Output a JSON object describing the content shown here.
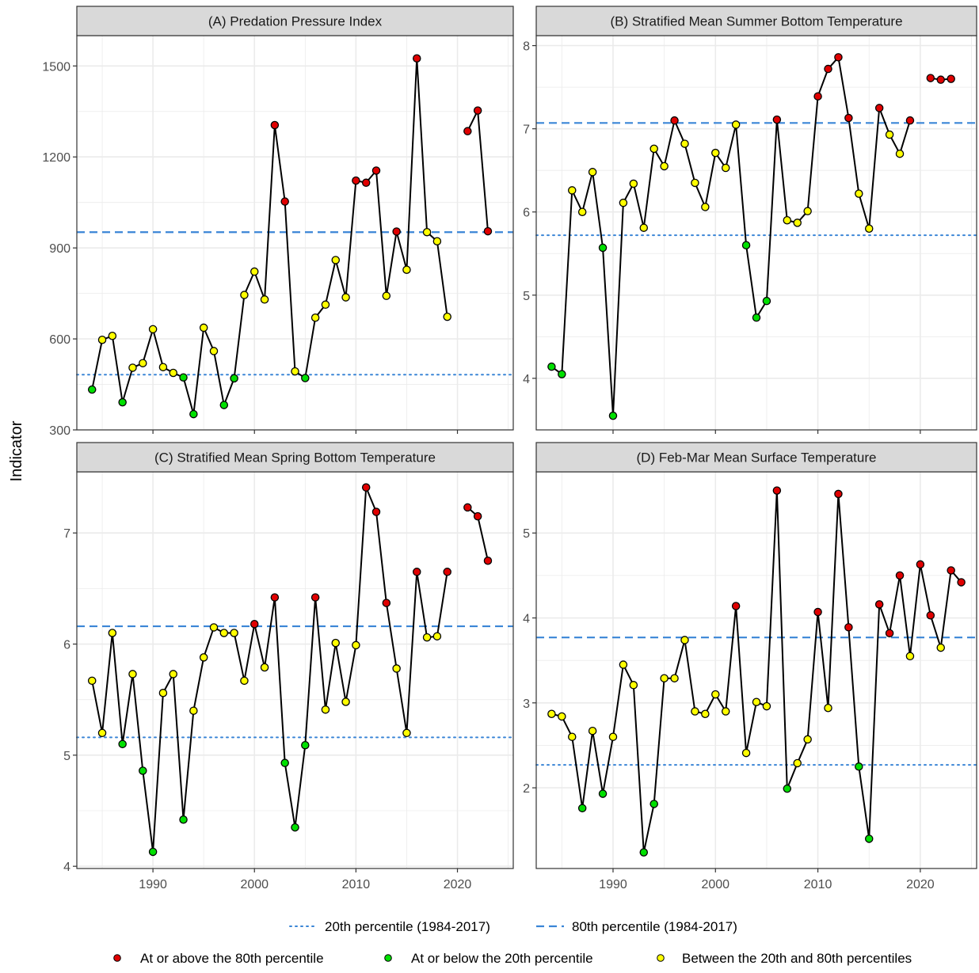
{
  "ylabel": "Indicator",
  "legend": {
    "lines": [
      {
        "label": "20th percentile (1984-2017)",
        "style": "dotted"
      },
      {
        "label": "80th percentile (1984-2017)",
        "style": "dashed"
      }
    ],
    "points": [
      {
        "label": "At or above the 80th percentile",
        "color": "#e00000"
      },
      {
        "label": "At or below the 20th percentile",
        "color": "#00e000"
      },
      {
        "label": "Between the 20th and 80th percentiles",
        "color": "#ffff00"
      }
    ]
  },
  "colors": {
    "high": "#e00000",
    "low": "#00e000",
    "mid": "#ffff00",
    "threshold": "#3a85d6",
    "strip": "#d9d9d9",
    "grid": "#ebebeb"
  },
  "chart_data": [
    {
      "type": "line",
      "title": "(A) Predation Pressure Index",
      "xlim": [
        1982.5,
        2025.5
      ],
      "ylim": [
        300,
        1600
      ],
      "xticks": [
        1990,
        2000,
        2010,
        2020
      ],
      "yticks": [
        300,
        600,
        900,
        1200,
        1500
      ],
      "show_xtick_labels": false,
      "thresholds": {
        "p20": 482,
        "p80": 952
      },
      "series": [
        {
          "x": 1984,
          "y": 433,
          "cls": "low"
        },
        {
          "x": 1985,
          "y": 597,
          "cls": "mid"
        },
        {
          "x": 1986,
          "y": 610,
          "cls": "mid"
        },
        {
          "x": 1987,
          "y": 391,
          "cls": "low"
        },
        {
          "x": 1988,
          "y": 505,
          "cls": "mid"
        },
        {
          "x": 1989,
          "y": 520,
          "cls": "mid"
        },
        {
          "x": 1990,
          "y": 632,
          "cls": "mid"
        },
        {
          "x": 1991,
          "y": 507,
          "cls": "mid"
        },
        {
          "x": 1992,
          "y": 488,
          "cls": "mid"
        },
        {
          "x": 1993,
          "y": 473,
          "cls": "low"
        },
        {
          "x": 1994,
          "y": 352,
          "cls": "low"
        },
        {
          "x": 1995,
          "y": 637,
          "cls": "mid"
        },
        {
          "x": 1996,
          "y": 560,
          "cls": "mid"
        },
        {
          "x": 1997,
          "y": 382,
          "cls": "low"
        },
        {
          "x": 1998,
          "y": 470,
          "cls": "low"
        },
        {
          "x": 1999,
          "y": 745,
          "cls": "mid"
        },
        {
          "x": 2000,
          "y": 822,
          "cls": "mid"
        },
        {
          "x": 2001,
          "y": 730,
          "cls": "mid"
        },
        {
          "x": 2002,
          "y": 1305,
          "cls": "high"
        },
        {
          "x": 2003,
          "y": 1053,
          "cls": "high"
        },
        {
          "x": 2004,
          "y": 493,
          "cls": "mid"
        },
        {
          "x": 2005,
          "y": 471,
          "cls": "low"
        },
        {
          "x": 2006,
          "y": 670,
          "cls": "mid"
        },
        {
          "x": 2007,
          "y": 713,
          "cls": "mid"
        },
        {
          "x": 2008,
          "y": 860,
          "cls": "mid"
        },
        {
          "x": 2009,
          "y": 737,
          "cls": "mid"
        },
        {
          "x": 2010,
          "y": 1122,
          "cls": "high"
        },
        {
          "x": 2011,
          "y": 1115,
          "cls": "high"
        },
        {
          "x": 2012,
          "y": 1155,
          "cls": "high"
        },
        {
          "x": 2013,
          "y": 742,
          "cls": "mid"
        },
        {
          "x": 2014,
          "y": 954,
          "cls": "high"
        },
        {
          "x": 2015,
          "y": 828,
          "cls": "mid"
        },
        {
          "x": 2016,
          "y": 1525,
          "cls": "high"
        },
        {
          "x": 2017,
          "y": 952,
          "cls": "mid"
        },
        {
          "x": 2018,
          "y": 922,
          "cls": "mid"
        },
        {
          "x": 2019,
          "y": 673,
          "cls": "mid"
        },
        {
          "x": 2021,
          "y": 1285,
          "cls": "high"
        },
        {
          "x": 2022,
          "y": 1353,
          "cls": "high"
        },
        {
          "x": 2023,
          "y": 955,
          "cls": "high"
        }
      ]
    },
    {
      "type": "line",
      "title": "(B) Stratified Mean Summer Bottom Temperature",
      "xlim": [
        1982.5,
        2025.5
      ],
      "ylim": [
        3.38,
        8.12
      ],
      "xticks": [
        1990,
        2000,
        2010,
        2020
      ],
      "yticks": [
        4,
        5,
        6,
        7,
        8
      ],
      "show_xtick_labels": false,
      "thresholds": {
        "p20": 5.72,
        "p80": 7.07
      },
      "series": [
        {
          "x": 1984,
          "y": 4.14,
          "cls": "low"
        },
        {
          "x": 1985,
          "y": 4.05,
          "cls": "low"
        },
        {
          "x": 1986,
          "y": 6.26,
          "cls": "mid"
        },
        {
          "x": 1987,
          "y": 6.0,
          "cls": "mid"
        },
        {
          "x": 1988,
          "y": 6.48,
          "cls": "mid"
        },
        {
          "x": 1989,
          "y": 5.57,
          "cls": "low"
        },
        {
          "x": 1990,
          "y": 3.55,
          "cls": "low"
        },
        {
          "x": 1991,
          "y": 6.11,
          "cls": "mid"
        },
        {
          "x": 1992,
          "y": 6.34,
          "cls": "mid"
        },
        {
          "x": 1993,
          "y": 5.81,
          "cls": "mid"
        },
        {
          "x": 1994,
          "y": 6.76,
          "cls": "mid"
        },
        {
          "x": 1995,
          "y": 6.55,
          "cls": "mid"
        },
        {
          "x": 1996,
          "y": 7.1,
          "cls": "high"
        },
        {
          "x": 1997,
          "y": 6.82,
          "cls": "mid"
        },
        {
          "x": 1998,
          "y": 6.35,
          "cls": "mid"
        },
        {
          "x": 1999,
          "y": 6.06,
          "cls": "mid"
        },
        {
          "x": 2000,
          "y": 6.71,
          "cls": "mid"
        },
        {
          "x": 2001,
          "y": 6.53,
          "cls": "mid"
        },
        {
          "x": 2002,
          "y": 7.05,
          "cls": "mid"
        },
        {
          "x": 2003,
          "y": 5.6,
          "cls": "low"
        },
        {
          "x": 2004,
          "y": 4.73,
          "cls": "low"
        },
        {
          "x": 2005,
          "y": 4.93,
          "cls": "low"
        },
        {
          "x": 2006,
          "y": 7.11,
          "cls": "high"
        },
        {
          "x": 2007,
          "y": 5.9,
          "cls": "mid"
        },
        {
          "x": 2008,
          "y": 5.87,
          "cls": "mid"
        },
        {
          "x": 2009,
          "y": 6.01,
          "cls": "mid"
        },
        {
          "x": 2010,
          "y": 7.39,
          "cls": "high"
        },
        {
          "x": 2011,
          "y": 7.72,
          "cls": "high"
        },
        {
          "x": 2012,
          "y": 7.86,
          "cls": "high"
        },
        {
          "x": 2013,
          "y": 7.13,
          "cls": "high"
        },
        {
          "x": 2014,
          "y": 6.22,
          "cls": "mid"
        },
        {
          "x": 2015,
          "y": 5.8,
          "cls": "mid"
        },
        {
          "x": 2016,
          "y": 7.25,
          "cls": "high"
        },
        {
          "x": 2017,
          "y": 6.93,
          "cls": "mid"
        },
        {
          "x": 2018,
          "y": 6.7,
          "cls": "mid"
        },
        {
          "x": 2019,
          "y": 7.1,
          "cls": "high"
        },
        {
          "x": 2021,
          "y": 7.61,
          "cls": "high"
        },
        {
          "x": 2022,
          "y": 7.59,
          "cls": "high"
        },
        {
          "x": 2023,
          "y": 7.6,
          "cls": "high"
        }
      ]
    },
    {
      "type": "line",
      "title": "(C) Stratified Mean Spring Bottom Temperature",
      "xlim": [
        1982.5,
        2025.5
      ],
      "ylim": [
        3.98,
        7.55
      ],
      "xticks": [
        1990,
        2000,
        2010,
        2020
      ],
      "yticks": [
        4,
        5,
        6,
        7
      ],
      "show_xtick_labels": true,
      "thresholds": {
        "p20": 5.16,
        "p80": 6.16
      },
      "series": [
        {
          "x": 1984,
          "y": 5.67,
          "cls": "mid"
        },
        {
          "x": 1985,
          "y": 5.2,
          "cls": "mid"
        },
        {
          "x": 1986,
          "y": 6.1,
          "cls": "mid"
        },
        {
          "x": 1987,
          "y": 5.1,
          "cls": "low"
        },
        {
          "x": 1988,
          "y": 5.73,
          "cls": "mid"
        },
        {
          "x": 1989,
          "y": 4.86,
          "cls": "low"
        },
        {
          "x": 1990,
          "y": 4.13,
          "cls": "low"
        },
        {
          "x": 1991,
          "y": 5.56,
          "cls": "mid"
        },
        {
          "x": 1992,
          "y": 5.73,
          "cls": "mid"
        },
        {
          "x": 1993,
          "y": 4.42,
          "cls": "low"
        },
        {
          "x": 1994,
          "y": 5.4,
          "cls": "mid"
        },
        {
          "x": 1995,
          "y": 5.88,
          "cls": "mid"
        },
        {
          "x": 1996,
          "y": 6.15,
          "cls": "mid"
        },
        {
          "x": 1997,
          "y": 6.1,
          "cls": "mid"
        },
        {
          "x": 1998,
          "y": 6.1,
          "cls": "mid"
        },
        {
          "x": 1999,
          "y": 5.67,
          "cls": "mid"
        },
        {
          "x": 2000,
          "y": 6.18,
          "cls": "high"
        },
        {
          "x": 2001,
          "y": 5.79,
          "cls": "mid"
        },
        {
          "x": 2002,
          "y": 6.42,
          "cls": "high"
        },
        {
          "x": 2003,
          "y": 4.93,
          "cls": "low"
        },
        {
          "x": 2004,
          "y": 4.35,
          "cls": "low"
        },
        {
          "x": 2005,
          "y": 5.09,
          "cls": "low"
        },
        {
          "x": 2006,
          "y": 6.42,
          "cls": "high"
        },
        {
          "x": 2007,
          "y": 5.41,
          "cls": "mid"
        },
        {
          "x": 2008,
          "y": 6.01,
          "cls": "mid"
        },
        {
          "x": 2009,
          "y": 5.48,
          "cls": "mid"
        },
        {
          "x": 2010,
          "y": 5.99,
          "cls": "mid"
        },
        {
          "x": 2011,
          "y": 7.41,
          "cls": "high"
        },
        {
          "x": 2012,
          "y": 7.19,
          "cls": "high"
        },
        {
          "x": 2013,
          "y": 6.37,
          "cls": "high"
        },
        {
          "x": 2014,
          "y": 5.78,
          "cls": "mid"
        },
        {
          "x": 2015,
          "y": 5.2,
          "cls": "mid"
        },
        {
          "x": 2016,
          "y": 6.65,
          "cls": "high"
        },
        {
          "x": 2017,
          "y": 6.06,
          "cls": "mid"
        },
        {
          "x": 2018,
          "y": 6.07,
          "cls": "mid"
        },
        {
          "x": 2019,
          "y": 6.65,
          "cls": "high"
        },
        {
          "x": 2021,
          "y": 7.23,
          "cls": "high"
        },
        {
          "x": 2022,
          "y": 7.15,
          "cls": "high"
        },
        {
          "x": 2023,
          "y": 6.75,
          "cls": "high"
        }
      ]
    },
    {
      "type": "line",
      "title": "(D) Feb-Mar Mean Surface Temperature",
      "xlim": [
        1982.5,
        2025.5
      ],
      "ylim": [
        1.05,
        5.72
      ],
      "xticks": [
        1990,
        2000,
        2010,
        2020
      ],
      "yticks": [
        2,
        3,
        4,
        5
      ],
      "show_xtick_labels": true,
      "thresholds": {
        "p20": 2.27,
        "p80": 3.77
      },
      "series": [
        {
          "x": 1984,
          "y": 2.87,
          "cls": "mid"
        },
        {
          "x": 1985,
          "y": 2.84,
          "cls": "mid"
        },
        {
          "x": 1986,
          "y": 2.6,
          "cls": "mid"
        },
        {
          "x": 1987,
          "y": 1.76,
          "cls": "low"
        },
        {
          "x": 1988,
          "y": 2.67,
          "cls": "mid"
        },
        {
          "x": 1989,
          "y": 1.93,
          "cls": "low"
        },
        {
          "x": 1990,
          "y": 2.6,
          "cls": "mid"
        },
        {
          "x": 1991,
          "y": 3.45,
          "cls": "mid"
        },
        {
          "x": 1992,
          "y": 3.21,
          "cls": "mid"
        },
        {
          "x": 1993,
          "y": 1.24,
          "cls": "low"
        },
        {
          "x": 1994,
          "y": 1.81,
          "cls": "low"
        },
        {
          "x": 1995,
          "y": 3.29,
          "cls": "mid"
        },
        {
          "x": 1996,
          "y": 3.29,
          "cls": "mid"
        },
        {
          "x": 1997,
          "y": 3.74,
          "cls": "mid"
        },
        {
          "x": 1998,
          "y": 2.9,
          "cls": "mid"
        },
        {
          "x": 1999,
          "y": 2.87,
          "cls": "mid"
        },
        {
          "x": 2000,
          "y": 3.1,
          "cls": "mid"
        },
        {
          "x": 2001,
          "y": 2.9,
          "cls": "mid"
        },
        {
          "x": 2002,
          "y": 4.14,
          "cls": "high"
        },
        {
          "x": 2003,
          "y": 2.41,
          "cls": "mid"
        },
        {
          "x": 2004,
          "y": 3.01,
          "cls": "mid"
        },
        {
          "x": 2005,
          "y": 2.96,
          "cls": "mid"
        },
        {
          "x": 2006,
          "y": 5.5,
          "cls": "high"
        },
        {
          "x": 2007,
          "y": 1.99,
          "cls": "low"
        },
        {
          "x": 2008,
          "y": 2.29,
          "cls": "mid"
        },
        {
          "x": 2009,
          "y": 2.57,
          "cls": "mid"
        },
        {
          "x": 2010,
          "y": 4.07,
          "cls": "high"
        },
        {
          "x": 2011,
          "y": 2.94,
          "cls": "mid"
        },
        {
          "x": 2012,
          "y": 5.46,
          "cls": "high"
        },
        {
          "x": 2013,
          "y": 3.89,
          "cls": "high"
        },
        {
          "x": 2014,
          "y": 2.25,
          "cls": "low"
        },
        {
          "x": 2015,
          "y": 1.4,
          "cls": "low"
        },
        {
          "x": 2016,
          "y": 4.16,
          "cls": "high"
        },
        {
          "x": 2017,
          "y": 3.82,
          "cls": "high"
        },
        {
          "x": 2018,
          "y": 4.5,
          "cls": "high"
        },
        {
          "x": 2019,
          "y": 3.55,
          "cls": "mid"
        },
        {
          "x": 2020,
          "y": 4.63,
          "cls": "high"
        },
        {
          "x": 2021,
          "y": 4.03,
          "cls": "high"
        },
        {
          "x": 2022,
          "y": 3.65,
          "cls": "mid"
        },
        {
          "x": 2023,
          "y": 4.56,
          "cls": "high"
        },
        {
          "x": 2024,
          "y": 4.42,
          "cls": "high"
        }
      ]
    }
  ]
}
